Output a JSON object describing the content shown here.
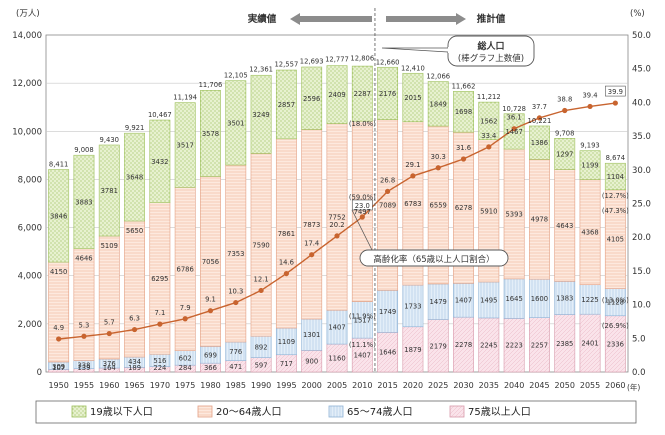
{
  "chart_data": {
    "type": "bar",
    "categories": [
      "1950",
      "1955",
      "1960",
      "1965",
      "1970",
      "1975",
      "1980",
      "1985",
      "1990",
      "1995",
      "2000",
      "2005",
      "2010",
      "2015",
      "2020",
      "2025",
      "2030",
      "2035",
      "2040",
      "2045",
      "2050",
      "2055",
      "2060"
    ],
    "x_unit": "(年)",
    "ylabel_left": "(万人)",
    "ylabel_right": "(%)",
    "ylim_left": [
      0,
      14000
    ],
    "ylim_right": [
      0,
      50
    ],
    "yticks_left": [
      "0",
      "2,000",
      "4,000",
      "6,000",
      "8,000",
      "10,000",
      "12,000",
      "14,000"
    ],
    "yticks_right": [
      "0.0",
      "5.0",
      "10.0",
      "15.0",
      "20.0",
      "25.0",
      "30.0",
      "35.0",
      "40.0",
      "45.0",
      "50.0"
    ],
    "divider_after": "2010",
    "arrow_left_label": "実績値",
    "arrow_right_label": "推計値",
    "series": [
      {
        "name": "75歳以上人口",
        "color": "#f7dde6",
        "values": [
          107,
          139,
          164,
          189,
          224,
          284,
          366,
          471,
          597,
          717,
          900,
          1160,
          1407,
          1646,
          1879,
          2179,
          2278,
          2245,
          2223,
          2257,
          2385,
          2401,
          2336
        ]
      },
      {
        "name": "65～74歳人口",
        "color": "#dce9f5",
        "values": [
          309,
          338,
          376,
          434,
          516,
          602,
          699,
          776,
          892,
          1109,
          1301,
          1407,
          1517,
          1749,
          1733,
          1479,
          1407,
          1495,
          1645,
          1600,
          1383,
          1225,
          1128
        ]
      },
      {
        "name": "20～64歳人口",
        "color": "#fbe3d6",
        "values": [
          4150,
          4646,
          5109,
          5650,
          6295,
          6786,
          7056,
          7353,
          7590,
          7861,
          7873,
          7752,
          7497,
          7089,
          6783,
          6559,
          6278,
          5910,
          5393,
          4978,
          4643,
          4368,
          4105
        ]
      },
      {
        "name": "19歳以下人口",
        "color": "#e7f1cf",
        "values": [
          3846,
          3883,
          3781,
          3648,
          3432,
          3517,
          3578,
          3501,
          3249,
          2857,
          2596,
          2409,
          2287,
          2176,
          2015,
          1849,
          1698,
          1562,
          1467,
          1386,
          1297,
          1199,
          1104
        ]
      }
    ],
    "totals": [
      "8,411",
      "9,008",
      "9,430",
      "9,921",
      "10,467",
      "11,194",
      "11,706",
      "12,105",
      "12,361",
      "12,557",
      "12,693",
      "12,777",
      "12,806",
      "12,660",
      "12,410",
      "12,066",
      "11,662",
      "11,212",
      "10,728",
      "10,221",
      "9,708",
      "9,193",
      "8,674"
    ],
    "total_values": [
      8411,
      9008,
      9430,
      9921,
      10467,
      11194,
      11706,
      12105,
      12361,
      12557,
      12693,
      12777,
      12806,
      12660,
      12410,
      12066,
      11662,
      11212,
      10728,
      10221,
      9708,
      9193,
      8674
    ],
    "aging_rate": {
      "name": "高齢化率（65歳以上人口割合）",
      "color": "#c8642f",
      "values": [
        4.9,
        5.3,
        5.7,
        6.3,
        7.1,
        7.9,
        9.1,
        10.3,
        12.1,
        14.6,
        17.4,
        20.2,
        23.0,
        26.8,
        29.1,
        30.3,
        31.6,
        33.4,
        36.1,
        37.7,
        38.8,
        39.4,
        39.9
      ]
    },
    "pct_labels": [
      {
        "year": "2010",
        "value": 59.0,
        "text": "(59.0%)"
      },
      {
        "year": "2010",
        "value": 18.0,
        "text": "(18.0%)"
      },
      {
        "year": "2010",
        "value": 11.9,
        "text": "(11.9%)"
      },
      {
        "year": "2010",
        "value": 11.1,
        "text": "(11.1%)"
      },
      {
        "year": "2060",
        "value": 47.3,
        "text": "(47.3%)"
      },
      {
        "year": "2060",
        "value": 12.7,
        "text": "(12.7%)"
      },
      {
        "year": "2060",
        "value": 13.0,
        "text": "(13.0%)"
      },
      {
        "year": "2060",
        "value": 26.9,
        "text": "(26.9%)"
      }
    ],
    "callout_total": [
      "総人口",
      "(棒グラフ上数値)"
    ],
    "callout_rate": "高齢化率（65歳以上人口割合）",
    "legend": [
      "19歳以下人口",
      "20～64歳人口",
      "65～74歳人口",
      "75歳以上人口"
    ],
    "legend_position": "bottom",
    "grid": true
  }
}
